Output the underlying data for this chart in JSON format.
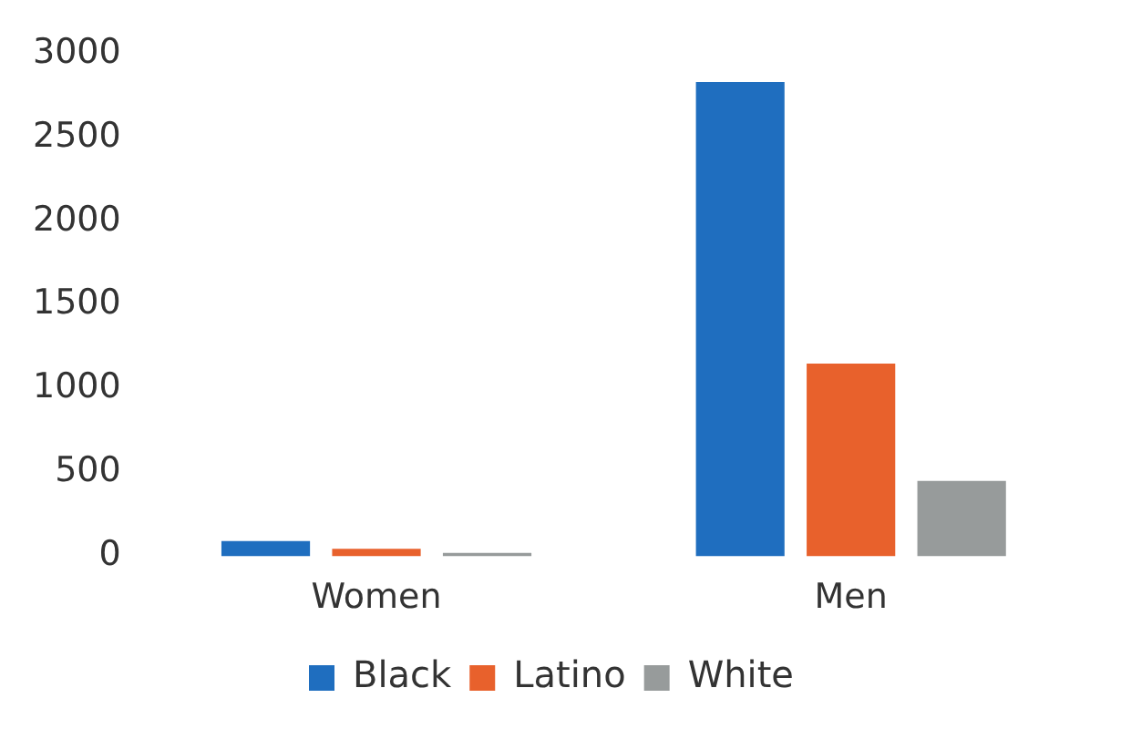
{
  "chart_data": {
    "type": "bar",
    "categories": [
      "Women",
      "Men"
    ],
    "series": [
      {
        "name": "Black",
        "color": "#1f6ebf",
        "values": [
          90,
          2830
        ]
      },
      {
        "name": "Latino",
        "color": "#e8612c",
        "values": [
          45,
          1150
        ]
      },
      {
        "name": "White",
        "color": "#979b9b",
        "values": [
          20,
          450
        ]
      }
    ],
    "ylim": [
      0,
      3000
    ],
    "yticks": [
      0,
      500,
      1000,
      1500,
      2000,
      2500,
      3000
    ],
    "grid": false,
    "legend": "bottom"
  }
}
